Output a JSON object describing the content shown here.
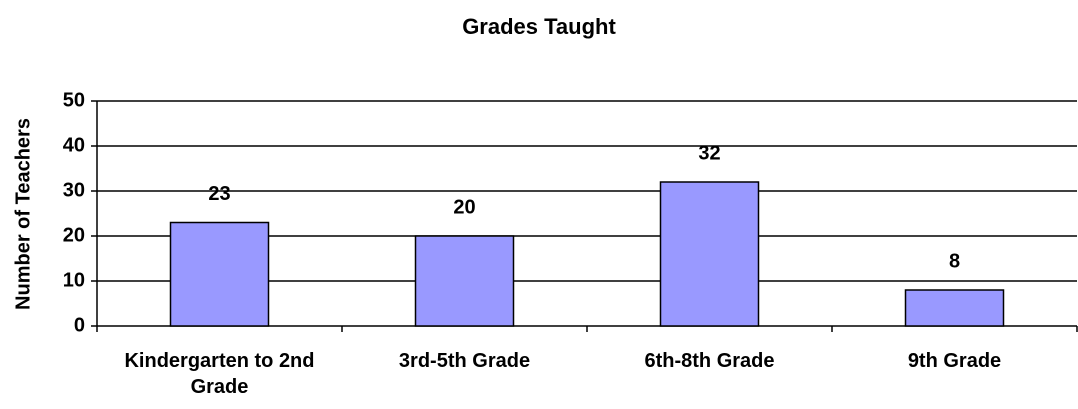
{
  "chart_data": {
    "type": "bar",
    "title": "Grades Taught",
    "y_label": "Number of Teachers",
    "categories": [
      "Kindergarten to 2nd Grade",
      "3rd-5th Grade",
      "6th-8th Grade",
      "9th Grade"
    ],
    "values": [
      23,
      20,
      32,
      8
    ],
    "color": "#9999ff",
    "ylim": [
      0,
      50
    ],
    "yticks": [
      0,
      10,
      20,
      30,
      40,
      50
    ],
    "grid": true
  }
}
